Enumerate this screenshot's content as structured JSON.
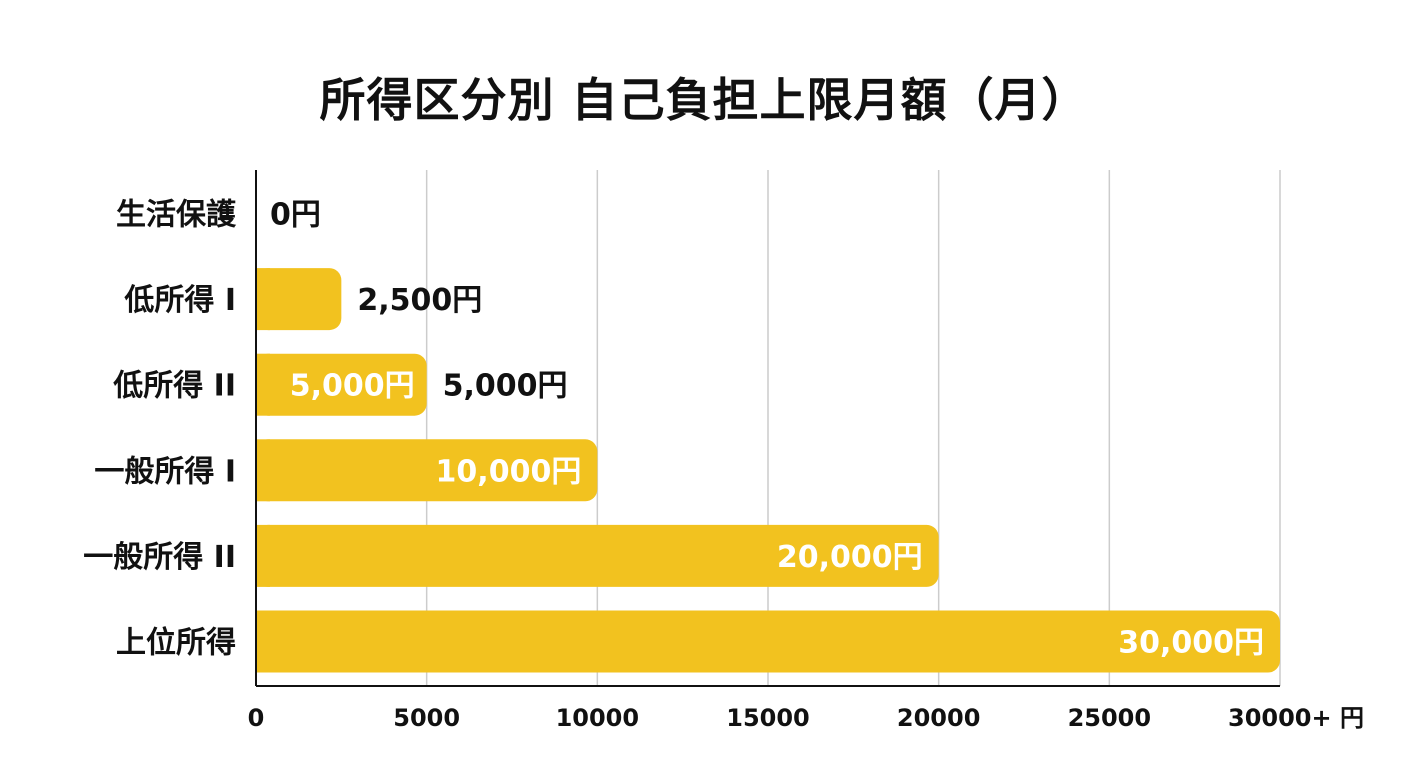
{
  "chart_data": {
    "type": "bar",
    "orientation": "horizontal",
    "title": "所得区分別 自己負担上限月額（月）",
    "categories": [
      "生活保護",
      "低所得 I",
      "低所得 II",
      "一般所得 I",
      "一般所得 II",
      "上位所得"
    ],
    "values": [
      0,
      2500,
      5000,
      10000,
      20000,
      30000
    ],
    "value_labels": [
      "0円",
      "2,500円",
      "5,000円",
      "10,000円",
      "20,000円",
      "30,000円"
    ],
    "extra_labels": [
      {
        "category_index": 2,
        "text": "5,000円"
      }
    ],
    "x_ticks": [
      "0",
      "5000",
      "10000",
      "15000",
      "20000",
      "25000",
      "30000+ 円"
    ],
    "xlim": [
      0,
      30000
    ],
    "grid": true,
    "colors": {
      "bar": "#F2C21F",
      "label_inside": "#FFFFFF",
      "label_outside": "#111111",
      "grid": "#CCCCCC",
      "axis": "#111111"
    }
  }
}
